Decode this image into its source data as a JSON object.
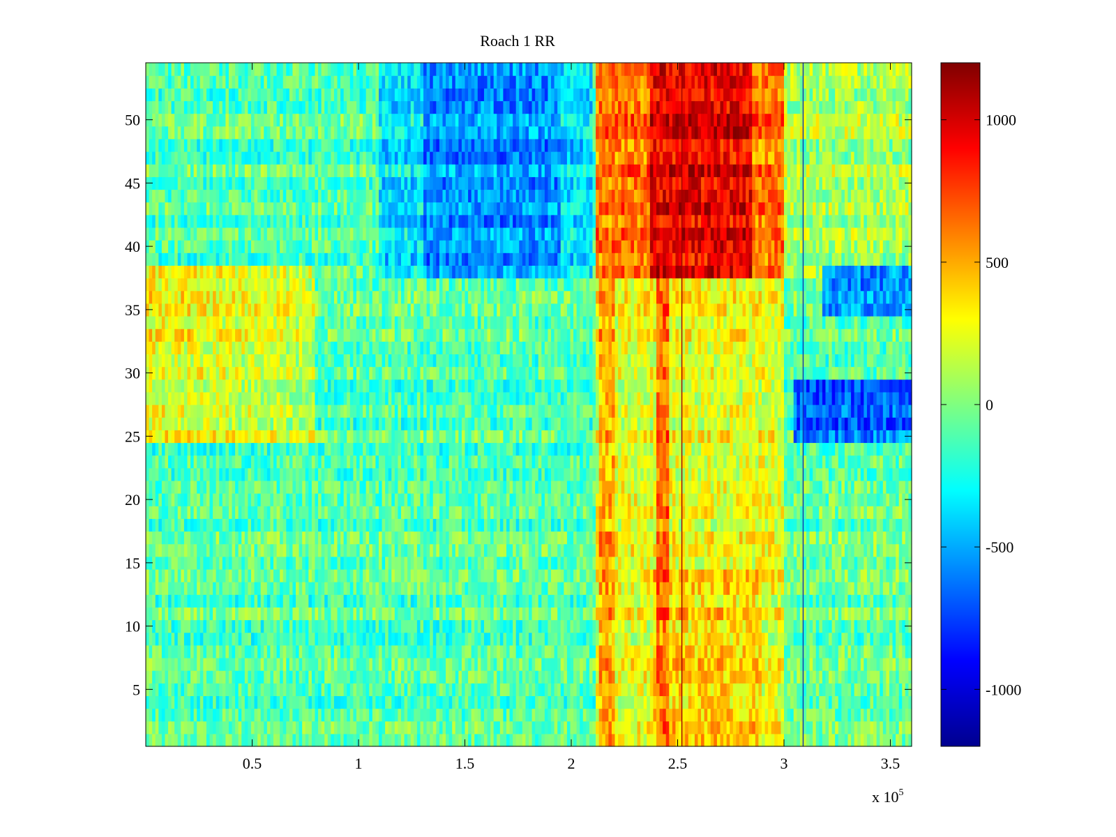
{
  "chart_data": {
    "type": "heatmap",
    "title": "Roach 1 RR",
    "xlabel": "",
    "ylabel": "",
    "x_range": [
      0,
      360000
    ],
    "y_range": [
      0.5,
      54.5
    ],
    "x_ticks": [
      50000,
      100000,
      150000,
      200000,
      250000,
      300000,
      350000
    ],
    "x_tick_labels": [
      "0.5",
      "1",
      "1.5",
      "2",
      "2.5",
      "3",
      "3.5"
    ],
    "x_exponent_label": "x 10",
    "x_exponent_power": "5",
    "y_ticks": [
      5,
      10,
      15,
      20,
      25,
      30,
      35,
      40,
      45,
      50
    ],
    "y_tick_labels": [
      "5",
      "10",
      "15",
      "20",
      "25",
      "30",
      "35",
      "40",
      "45",
      "50"
    ],
    "rows": 54,
    "colorbar": {
      "range": [
        -1200,
        1200
      ],
      "ticks": [
        -1000,
        -500,
        0,
        500,
        1000
      ],
      "tick_labels": [
        "-1000",
        "-500",
        "0",
        "500",
        "1000"
      ],
      "colormap": "jet"
    },
    "description_regions": [
      {
        "x": [
          140000,
          190000
        ],
        "y": [
          38,
          54
        ],
        "level": -650
      },
      {
        "x": [
          213000,
          300000
        ],
        "y": [
          38,
          54
        ],
        "level": 800
      },
      {
        "x": [
          237000,
          280000
        ],
        "y": [
          38,
          54
        ],
        "level": 1050
      },
      {
        "x": [
          0,
          65000
        ],
        "y": [
          25,
          38
        ],
        "level": 350
      },
      {
        "x": [
          213000,
          300000
        ],
        "y": [
          1,
          25
        ],
        "level": 350
      },
      {
        "x": [
          305000,
          360000
        ],
        "y": [
          25,
          29
        ],
        "level": -700
      },
      {
        "x": [
          320000,
          360000
        ],
        "y": [
          35,
          38
        ],
        "level": -600
      }
    ]
  },
  "colors": {
    "background": "#ffffff",
    "axes": "#000000"
  }
}
